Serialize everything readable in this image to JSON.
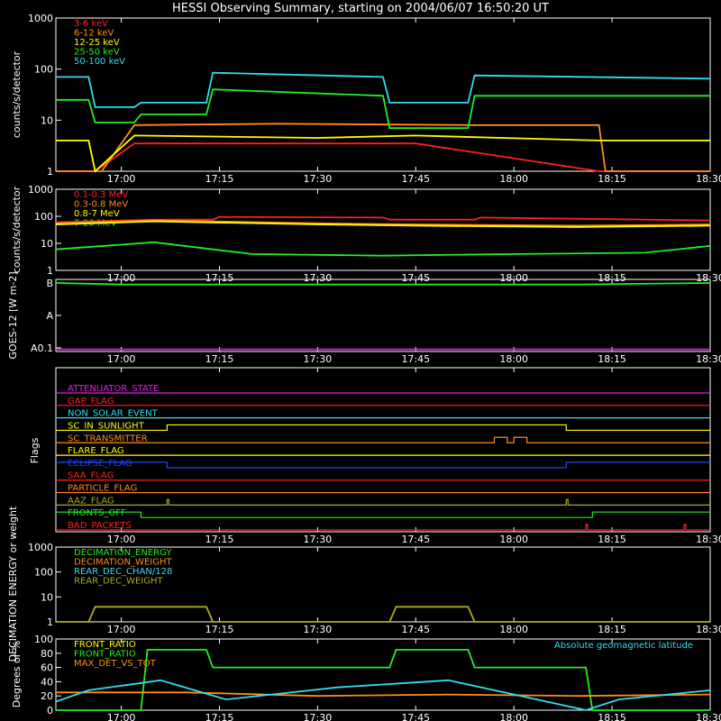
{
  "title": "HESSI Observing Summary, starting on 2004/06/07 16:50:20 UT",
  "colors": {
    "red": "#ff2020",
    "orange": "#ff8c1a",
    "yellow": "#ffff00",
    "green": "#22ee22",
    "cyan": "#33ddee",
    "magenta": "#dd22dd",
    "blue": "#2244ff",
    "olive": "#aaaa22",
    "white": "#ffffff"
  },
  "chart_data": [
    {
      "type": "line",
      "ylabel": "counts/s/detector",
      "yscale": "log",
      "ylim": [
        1,
        1000
      ],
      "yticks": [
        "1",
        "10",
        "100",
        "1000"
      ],
      "xlim": [
        "16:50",
        "18:30"
      ],
      "xticks": [
        "17:00",
        "17:15",
        "17:30",
        "17:45",
        "18:00",
        "18:15",
        "18:30"
      ],
      "series": [
        {
          "name": "3-6 keV",
          "color": "#ff2020",
          "x": [
            "16:50",
            "16:56",
            "17:02",
            "17:22",
            "17:45",
            "18:13",
            "18:30"
          ],
          "y": [
            1,
            1,
            3.5,
            3.5,
            3.5,
            1,
            1
          ]
        },
        {
          "name": "6-12 keV",
          "color": "#ff8c1a",
          "x": [
            "16:50",
            "16:56",
            "16:57",
            "17:02",
            "17:24",
            "17:54",
            "18:13",
            "18:14",
            "18:30"
          ],
          "y": [
            1,
            1,
            1,
            8,
            8.5,
            8,
            8,
            1,
            1
          ]
        },
        {
          "name": "12-25 keV",
          "color": "#ffff00",
          "x": [
            "16:50",
            "16:55",
            "16:56",
            "17:02",
            "17:30",
            "17:45",
            "18:13",
            "18:30"
          ],
          "y": [
            4,
            4,
            1,
            5,
            4.5,
            5,
            4,
            4
          ]
        },
        {
          "name": "25-50 keV",
          "color": "#22ee22",
          "x": [
            "16:50",
            "16:55",
            "16:56",
            "17:02",
            "17:03",
            "17:13",
            "17:14",
            "17:40",
            "17:41",
            "17:53",
            "17:54",
            "18:30"
          ],
          "y": [
            25,
            25,
            9,
            9,
            13,
            13,
            40,
            30,
            7,
            7,
            30,
            30
          ]
        },
        {
          "name": "50-100 keV",
          "color": "#33ddee",
          "x": [
            "16:50",
            "16:55",
            "16:56",
            "17:02",
            "17:03",
            "17:13",
            "17:14",
            "17:40",
            "17:41",
            "17:53",
            "17:54",
            "18:30"
          ],
          "y": [
            70,
            70,
            18,
            18,
            22,
            22,
            85,
            70,
            22,
            22,
            75,
            65
          ]
        }
      ]
    },
    {
      "type": "line",
      "ylabel": "counts/s/detector",
      "yscale": "log",
      "ylim": [
        1,
        1000
      ],
      "yticks": [
        "1",
        "10",
        "100",
        "1000"
      ],
      "xlim": [
        "16:50",
        "18:30"
      ],
      "xticks": [
        "17:00",
        "17:15",
        "17:30",
        "17:45",
        "18:00",
        "18:15",
        "18:30"
      ],
      "series": [
        {
          "name": "0.1-0.3 MeV",
          "color": "#ff2020",
          "x": [
            "16:50",
            "17:05",
            "17:14",
            "17:15",
            "17:40",
            "17:41",
            "17:54",
            "17:55",
            "18:30"
          ],
          "y": [
            60,
            75,
            75,
            95,
            90,
            75,
            75,
            90,
            70
          ]
        },
        {
          "name": "0.3-0.8 MeV",
          "color": "#ff8c1a",
          "x": [
            "16:50",
            "17:05",
            "17:30",
            "17:45",
            "18:10",
            "18:30"
          ],
          "y": [
            55,
            70,
            55,
            50,
            45,
            50
          ]
        },
        {
          "name": "0.8-7 MeV",
          "color": "#ffff00",
          "x": [
            "16:50",
            "17:05",
            "17:30",
            "17:45",
            "18:10",
            "18:30"
          ],
          "y": [
            50,
            65,
            50,
            45,
            40,
            45
          ]
        },
        {
          "name": "7-20 MeV",
          "color": "#22ee22",
          "x": [
            "16:50",
            "17:05",
            "17:20",
            "17:40",
            "18:00",
            "18:20",
            "18:30"
          ],
          "y": [
            6,
            11,
            4,
            3.5,
            4,
            4.5,
            8
          ]
        }
      ]
    },
    {
      "type": "line",
      "ylabel": "GOES-12 [W m-2]",
      "yticks": [
        "A0.1",
        "A",
        "B"
      ],
      "xlim": [
        "16:50",
        "18:30"
      ],
      "xticks": [
        "17:00",
        "17:15",
        "17:30",
        "17:45",
        "18:00",
        "18:15",
        "18:30"
      ],
      "series": [
        {
          "color": "#22ee22",
          "x": [
            "16:50",
            "17:00",
            "18:10",
            "18:30"
          ],
          "y": [
            0.95,
            0.93,
            0.93,
            0.95
          ]
        },
        {
          "color": "#dd22dd",
          "x": [
            "16:50",
            "18:30"
          ],
          "y": [
            0.03,
            0.03
          ]
        }
      ]
    },
    {
      "type": "line",
      "ylabel": "Flags",
      "xlim": [
        "16:50",
        "18:30"
      ],
      "xticks": [
        "17:00",
        "17:15",
        "17:30",
        "17:45",
        "18:00",
        "18:15",
        "18:30"
      ],
      "flags": [
        {
          "name": "ATTENUATOR_STATE",
          "color": "#dd22dd",
          "on": []
        },
        {
          "name": "GAP_FLAG",
          "color": "#ff2020",
          "on": []
        },
        {
          "name": "NON_SOLAR_EVENT",
          "color": "#33ddee",
          "on": []
        },
        {
          "name": "SC_IN_SUNLIGHT",
          "color": "#ffff00",
          "on": [
            [
              "17:07",
              "18:08"
            ]
          ]
        },
        {
          "name": "SC_TRANSMITTER",
          "color": "#ff8c1a",
          "on": [
            [
              "17:57",
              "17:59"
            ],
            [
              "18:00",
              "18:02"
            ]
          ]
        },
        {
          "name": "FLARE_FLAG",
          "color": "#ffff00",
          "on": []
        },
        {
          "name": "ECLIPSE_FLAG",
          "color": "#2244ff",
          "inverted": true,
          "on": [
            [
              "17:07",
              "18:08"
            ]
          ]
        },
        {
          "name": "SAA_FLAG",
          "color": "#ff2020",
          "on": []
        },
        {
          "name": "PARTICLE_FLAG",
          "color": "#ff8c1a",
          "on": []
        },
        {
          "name": "AAZ_FLAG",
          "color": "#aaaa22",
          "on": [
            [
              "17:07",
              "17:07"
            ],
            [
              "18:08",
              "18:08"
            ]
          ]
        },
        {
          "name": "FRONTS_OFF",
          "color": "#22ee22",
          "inverted": true,
          "on": [
            [
              "17:03",
              "18:12"
            ]
          ]
        },
        {
          "name": "BAD_PACKETS",
          "color": "#ff2020",
          "on": [
            [
              "18:11",
              "18:11"
            ],
            [
              "18:26",
              "18:26"
            ]
          ]
        }
      ]
    },
    {
      "type": "line",
      "ylabel": "DECIMATION ENERGY or weight",
      "yscale": "log",
      "ylim": [
        1,
        1000
      ],
      "yticks": [
        "1",
        "10",
        "100",
        "1000"
      ],
      "xlim": [
        "16:50",
        "18:30"
      ],
      "xticks": [
        "17:00",
        "17:15",
        "17:30",
        "17:45",
        "18:00",
        "18:15",
        "18:30"
      ],
      "series": [
        {
          "name": "DECIMATION_ENERGY",
          "color": "#22ee22",
          "x": [],
          "y": []
        },
        {
          "name": "DECIMATION_WEIGHT",
          "color": "#ff8c1a",
          "x": [],
          "y": []
        },
        {
          "name": "REAR_DEC_CHAN/128",
          "color": "#33ddee",
          "x": [],
          "y": []
        },
        {
          "name": "REAR_DEC_WEIGHT",
          "color": "#aaaa22",
          "x": [
            "16:50",
            "16:55",
            "16:56",
            "17:13",
            "17:14",
            "17:41",
            "17:42",
            "17:53",
            "17:54",
            "18:30"
          ],
          "y": [
            1,
            1,
            4,
            4,
            1,
            1,
            4,
            4,
            1,
            1
          ]
        }
      ]
    },
    {
      "type": "line",
      "ylabel": "Degrees or %",
      "ylim": [
        0,
        100
      ],
      "yticks": [
        "0",
        "20",
        "40",
        "60",
        "80",
        "100"
      ],
      "xlim": [
        "16:50",
        "18:30"
      ],
      "xticks": [
        "17:00",
        "17:15",
        "17:30",
        "17:45",
        "18:00",
        "18:15",
        "18:30"
      ],
      "annotation": "Absolute geomagnetic latitude",
      "series": [
        {
          "name": "FRONT_RATIO",
          "color": "#ffff00",
          "x": [],
          "y": []
        },
        {
          "name": "FRONT_RATIO",
          "color": "#22ee22",
          "x": [
            "16:50",
            "17:03",
            "17:04",
            "17:13",
            "17:14",
            "17:41",
            "17:42",
            "17:53",
            "17:54",
            "18:11",
            "18:12",
            "18:30"
          ],
          "y": [
            0,
            0,
            85,
            85,
            60,
            60,
            85,
            85,
            60,
            60,
            0,
            0
          ]
        },
        {
          "name": "MAX_DET_VS_TOT",
          "color": "#ff8c1a",
          "x": [
            "16:50",
            "17:10",
            "17:30",
            "17:50",
            "18:10",
            "18:30"
          ],
          "y": [
            25,
            25,
            20,
            22,
            20,
            22
          ]
        },
        {
          "name": "Absolute geomagnetic latitude",
          "color": "#33ddee",
          "x": [
            "16:50",
            "16:55",
            "17:06",
            "17:16",
            "17:33",
            "17:50",
            "18:05",
            "18:11",
            "18:16",
            "18:30"
          ],
          "y": [
            12,
            28,
            42,
            15,
            32,
            42,
            12,
            0,
            15,
            28
          ]
        }
      ]
    }
  ]
}
